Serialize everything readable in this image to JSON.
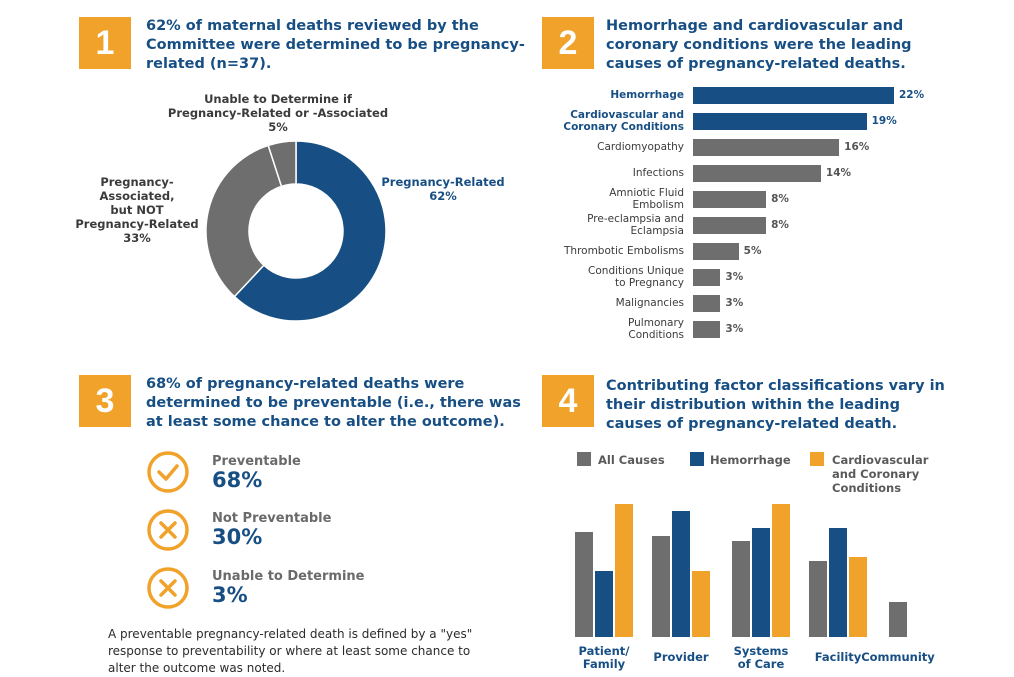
{
  "colors": {
    "blue": "#174f84",
    "gray": "#6e6e6e",
    "orange": "#f0a22a"
  },
  "panel1": {
    "badge": "1",
    "heading": "62% of maternal deaths reviewed by the Committee were determined to be pregnancy-related (n=37).",
    "heading_lines": [
      "62% of maternal deaths reviewed by the",
      "Committee were determined to be pregnancy-",
      "related (n=37)."
    ]
  },
  "panel2": {
    "badge": "2",
    "heading_lines": [
      "Hemorrhage and cardiovascular and",
      "coronary conditions were the leading",
      "causes of pregnancy-related deaths."
    ]
  },
  "panel3": {
    "badge": "3",
    "heading_lines": [
      "68% of pregnancy-related deaths were",
      "determined to be preventable (i.e., there was",
      "at least some chance to alter the outcome)."
    ],
    "items": [
      {
        "title": "Preventable",
        "pct": "68%",
        "icon": "check-circle-icon"
      },
      {
        "title": "Not Preventable",
        "pct": "30%",
        "icon": "x-circle-icon"
      },
      {
        "title": "Unable to Determine",
        "pct": "3%",
        "icon": "x-circle-icon"
      }
    ],
    "note": "A preventable pregnancy-related death is defined by a \"yes\" response to preventability or where at least some chance to alter the outcome was noted."
  },
  "panel4": {
    "badge": "4",
    "heading_lines": [
      "Contributing factor classifications vary in",
      "their distribution within the leading",
      "causes of pregnancy-related death."
    ]
  },
  "chart_data": [
    {
      "type": "pie",
      "style": "donut",
      "slices": [
        {
          "label": "Pregnancy-Related",
          "value": 62,
          "display": "62%",
          "label_lines": [
            "Pregnancy-Related",
            "62%"
          ],
          "color": "#174f84"
        },
        {
          "label": "Pregnancy-Associated, but NOT Pregnancy-Related",
          "value": 33,
          "display": "33%",
          "label_lines": [
            "Pregnancy-",
            "Associated,",
            "but NOT",
            "Pregnancy-Related",
            "33%"
          ],
          "color": "#6e6e6e"
        },
        {
          "label": "Unable to Determine if Pregnancy-Related or -Associated",
          "value": 5,
          "display": "5%",
          "label_lines": [
            "Unable to Determine if",
            "Pregnancy-Related or -Associated",
            "5%"
          ],
          "color": "#6e6e6e"
        }
      ]
    },
    {
      "type": "bar",
      "orientation": "horizontal",
      "xlim": [
        0,
        22
      ],
      "categories": [
        {
          "lines": [
            "Hemorrhage"
          ],
          "value": 22,
          "display": "22%",
          "highlight": true
        },
        {
          "lines": [
            "Cardiovascular and",
            "Coronary Conditions"
          ],
          "value": 19,
          "display": "19%",
          "highlight": true
        },
        {
          "lines": [
            "Cardiomyopathy"
          ],
          "value": 16,
          "display": "16%",
          "highlight": false
        },
        {
          "lines": [
            "Infections"
          ],
          "value": 14,
          "display": "14%",
          "highlight": false
        },
        {
          "lines": [
            "Amniotic Fluid",
            "Embolism"
          ],
          "value": 8,
          "display": "8%",
          "highlight": false
        },
        {
          "lines": [
            "Pre-eclampsia and",
            "Eclampsia"
          ],
          "value": 8,
          "display": "8%",
          "highlight": false
        },
        {
          "lines": [
            "Thrombotic Embolisms"
          ],
          "value": 5,
          "display": "5%",
          "highlight": false
        },
        {
          "lines": [
            "Conditions Unique",
            "to Pregnancy"
          ],
          "value": 3,
          "display": "3%",
          "highlight": false
        },
        {
          "lines": [
            "Malignancies"
          ],
          "value": 3,
          "display": "3%",
          "highlight": false
        },
        {
          "lines": [
            "Pulmonary",
            "Conditions"
          ],
          "value": 3,
          "display": "3%",
          "highlight": false
        }
      ]
    },
    {
      "type": "bar",
      "orientation": "vertical",
      "legend": [
        {
          "name": "All Causes",
          "lines": [
            "All Causes"
          ],
          "color": "#6e6e6e"
        },
        {
          "name": "Hemorrhage",
          "lines": [
            "Hemorrhage"
          ],
          "color": "#174f84"
        },
        {
          "name": "Cardiovascular and Coronary Conditions",
          "lines": [
            "Cardiovascular",
            "and Coronary",
            "Conditions"
          ],
          "color": "#f0a22a"
        }
      ],
      "categories": [
        {
          "lines": [
            "Patient/",
            "Family"
          ]
        },
        {
          "lines": [
            "Provider"
          ]
        },
        {
          "lines": [
            "Systems",
            "of Care"
          ]
        },
        {
          "lines": [
            "Facility"
          ]
        },
        {
          "lines": [
            "Community"
          ]
        }
      ],
      "series": [
        {
          "name": "All Causes",
          "values": [
            0.79,
            0.76,
            0.72,
            0.57,
            0.26
          ]
        },
        {
          "name": "Hemorrhage",
          "values": [
            0.5,
            0.95,
            0.82,
            0.82,
            null
          ]
        },
        {
          "name": "Cardiovascular and Coronary Conditions",
          "values": [
            1.0,
            0.5,
            1.0,
            0.6,
            null
          ]
        }
      ]
    }
  ]
}
